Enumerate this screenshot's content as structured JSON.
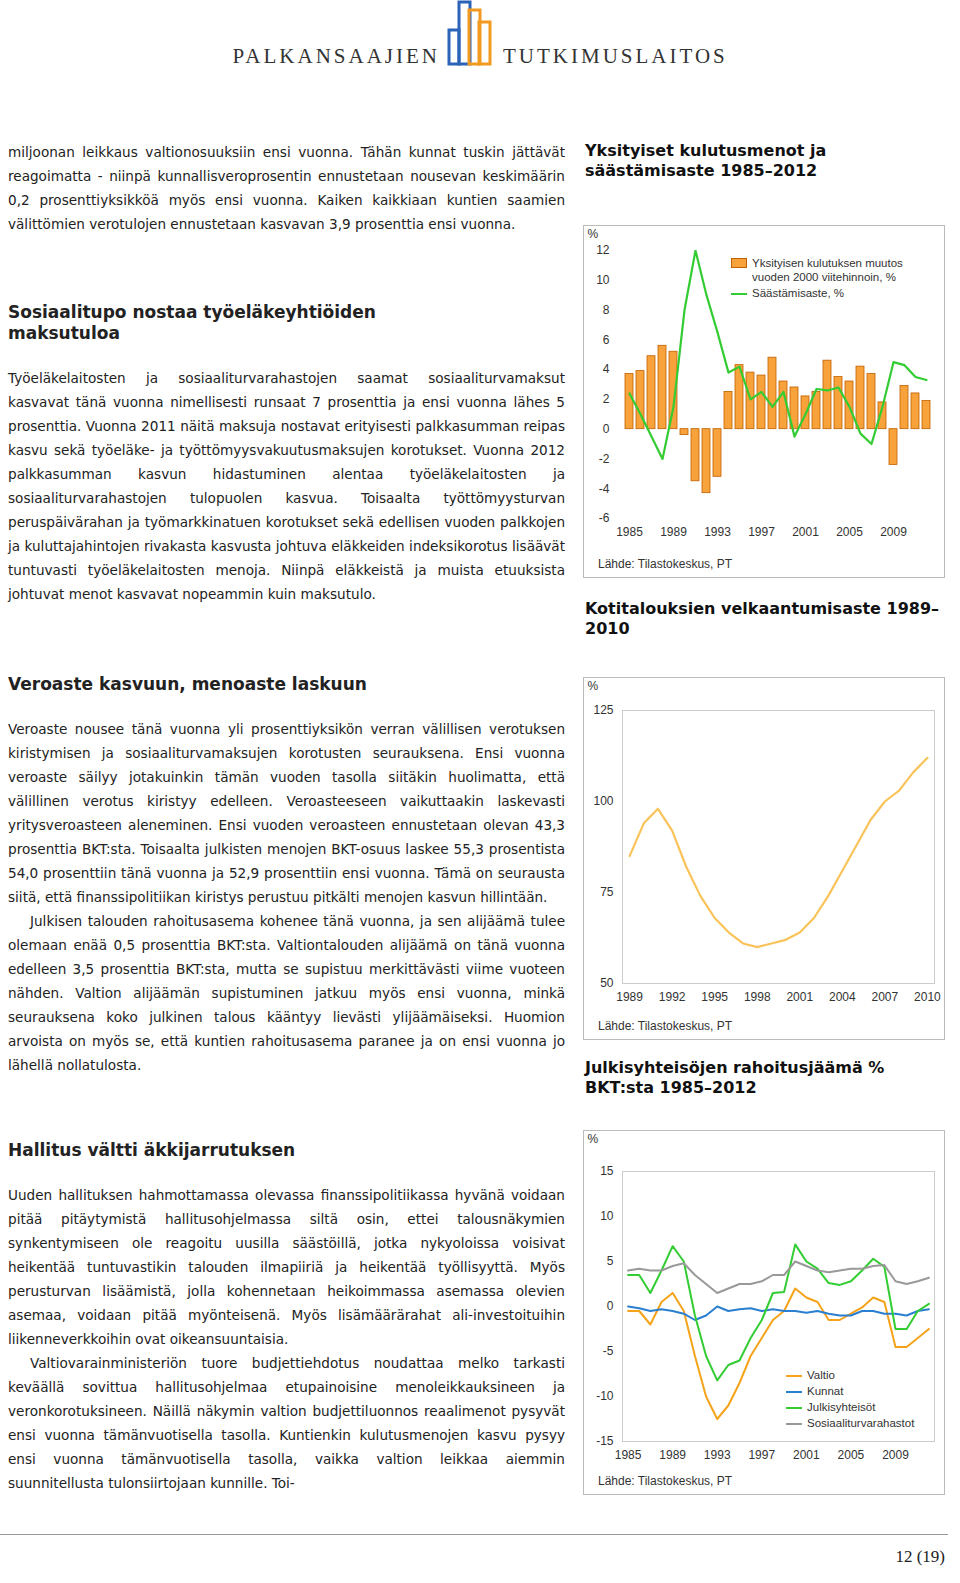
{
  "header": {
    "left": "PALKANSAAJIEN",
    "right": "TUTKIMUSLAITOS"
  },
  "sections": [
    {
      "paragraphs": [
        "miljoonan leikkaus valtionosuuksiin ensi vuonna. Tähän kunnat tuskin jättävät reagoimatta - niinpä kunnallisveroprosentin ennustetaan nousevan keskimäärin 0,2 prosenttiyksikköä myös ensi vuonna. Kaiken kaikkiaan kuntien saamien välittömien verotulojen ennustetaan kasvavan 3,9 prosenttia ensi vuonna."
      ]
    },
    {
      "heading": "Sosiaalitupo nostaa työeläkeyhtiöiden maksutuloa",
      "paragraphs": [
        "Työeläkelaitosten ja sosiaaliturvarahastojen saamat sosiaaliturvamaksut kasvavat tänä vuonna nimellisesti runsaat 7 prosenttia ja ensi vuonna lähes 5 prosenttia. Vuonna 2011 näitä maksuja nostavat erityisesti palkkasumman reipas kasvu sekä työeläke- ja työttömyysvakuutusmaksujen korotukset. Vuonna 2012 palkkasumman kasvun hidastuminen alentaa työeläkelaitosten ja sosiaaliturvarahastojen tulopuolen kasvua. Toisaalta työttömyysturvan peruspäivärahan ja työmarkkinatuen korotukset sekä edellisen vuoden palkkojen ja kuluttajahintojen rivakasta kasvusta johtuva eläkkeiden indeksikorotus lisäävät tuntuvasti työeläkelaitosten menoja. Niinpä eläkkeistä ja muista etuuksista johtuvat menot kasvavat nopeammin kuin maksutulo."
      ]
    },
    {
      "heading": "Veroaste kasvuun, menoaste laskuun",
      "paragraphs": [
        "Veroaste nousee tänä vuonna yli prosenttiyksikön verran välillisen verotuksen kiristymisen ja sosiaaliturvamaksujen korotusten seurauksena. Ensi vuonna veroaste säilyy jotakuinkin tämän vuoden tasolla siitäkin huolimatta, että välillinen verotus kiristyy edelleen. Veroasteeseen vaikuttaakin laskevasti yritysveroasteen aleneminen. Ensi vuoden veroasteen ennustetaan olevan 43,3 prosenttia BKT:sta. Toisaalta julkisten menojen BKT-osuus laskee 55,3 prosentista 54,0 prosenttiin tänä vuonna ja 52,9 prosenttiin ensi vuonna. Tämä on seurausta siitä, että finanssipolitiikan kiristys perustuu pitkälti menojen kasvun hillintään.",
        "Julkisen talouden rahoitusasema kohenee tänä vuonna, ja sen alijäämä tulee olemaan enää 0,5 prosenttia BKT:sta. Valtiontalouden alijäämä on tänä vuonna edelleen 3,5 prosenttia BKT:sta, mutta se supistuu merkittävästi viime vuoteen nähden. Valtion alijäämän supistuminen jatkuu myös ensi vuonna, minkä seurauksena koko julkinen talous kääntyy lievästi ylijäämäiseksi. Huomion arvoista on myös se, että kuntien rahoitusasema paranee ja on ensi vuonna jo lähellä nollatulosta."
      ]
    },
    {
      "heading": "Hallitus vältti äkkijarrutuksen",
      "paragraphs": [
        "Uuden hallituksen hahmottamassa olevassa finanssipolitiikassa hyvänä voidaan pitää pitäytymistä hallitusohjelmassa siltä osin, ettei talousnäkymien synkentymiseen ole reagoitu uusilla säästöillä, jotka nykyoloissa voisivat heikentää tuntuvastikin talouden ilmapiiriä ja heikentää työllisyyttä. Myös perusturvan lisäämistä, jolla kohennetaan heikoimmassa asemassa olevien asemaa, voidaan pitää myönteisenä. Myös lisämäärärahat ali-investoituihin liikenneverkkoihin ovat oikeansuuntaisia.",
        "Valtiovarainministeriön tuore budjettiehdotus noudattaa melko tarkasti keväällä sovittua hallitusohjelmaa etupainoisine menoleikkauksineen ja veronkorotuksineen. Näillä näkymin valtion budjettiluonnos reaalimenot pysyvät ensi vuonna tämänvuotisella tasolla. Kuntienkin kulutusmenojen kasvu pysyy ensi vuonna tämänvuotisella tasolla, vaikka valtion leikkaa aiemmin suunnitellusta tulonsiirtojaan kunnille. Toi-"
      ]
    }
  ],
  "chart_data": [
    {
      "type": "bar",
      "title": "Yksityiset kulutusmenot ja säästämisaste 1985–2012",
      "y_label": "%",
      "categories": [
        "1985",
        null,
        null,
        null,
        "1989",
        null,
        null,
        null,
        "1993",
        null,
        null,
        null,
        "1997",
        null,
        null,
        null,
        "2001",
        null,
        null,
        null,
        "2005",
        null,
        null,
        null,
        "2009",
        null,
        null,
        null
      ],
      "series": [
        {
          "name": "Yksityisen kulutuksen muutos vuoden 2000 viitehinnoin, %",
          "type": "bar",
          "color": "#f7a23b",
          "values": [
            3.7,
            3.9,
            4.9,
            5.6,
            5.2,
            -0.4,
            -3.5,
            -4.3,
            -3.2,
            2.5,
            4.3,
            3.8,
            3.6,
            4.8,
            3.2,
            2.8,
            2.2,
            2.5,
            4.6,
            3.5,
            3.2,
            4.2,
            3.7,
            1.8,
            -2.4,
            2.9,
            2.4,
            1.9
          ]
        },
        {
          "name": "Säästämisaste, %",
          "type": "line",
          "color": "#33cc33",
          "values": [
            2.4,
            1.0,
            -0.5,
            -2.0,
            1.5,
            8.0,
            12.0,
            9.0,
            6.5,
            3.8,
            4.2,
            2.0,
            2.5,
            1.5,
            2.5,
            -0.5,
            1.0,
            2.7,
            2.6,
            2.8,
            1.5,
            -0.3,
            -1.0,
            1.5,
            4.5,
            4.3,
            3.5,
            3.3
          ]
        }
      ],
      "ylim": [
        -6,
        12
      ],
      "yticks": [
        -6,
        -4,
        -2,
        0,
        2,
        4,
        6,
        8,
        10,
        12
      ],
      "legend": "top-right",
      "source": "Lähde: Tilastokeskus, PT"
    },
    {
      "type": "line",
      "title": "Kotitalouksien velkaantumisaste 1989–2010",
      "y_label": "%",
      "x": [
        1989,
        1990,
        1991,
        1992,
        1993,
        1994,
        1995,
        1996,
        1997,
        1998,
        1999,
        2000,
        2001,
        2002,
        2003,
        2004,
        2005,
        2006,
        2007,
        2008,
        2009,
        2010
      ],
      "values": [
        85,
        94,
        98,
        92,
        82,
        74,
        68,
        64,
        61,
        60,
        61,
        62,
        64,
        68,
        74,
        81,
        88,
        95,
        100,
        103,
        108,
        112
      ],
      "color": "#f9c35a",
      "xlim": [
        1988.5,
        2010.5
      ],
      "xticks": [
        1989,
        1992,
        1995,
        1998,
        2001,
        2004,
        2007,
        2010
      ],
      "ylim": [
        50,
        125
      ],
      "yticks": [
        50,
        75,
        100,
        125
      ],
      "source": "Lähde: Tilastokeskus, PT"
    },
    {
      "type": "line",
      "title": "Julkisyhteisöjen rahoitusjäämä % BKT:sta 1985–2012",
      "y_label": "%",
      "x": [
        1985,
        1986,
        1987,
        1988,
        1989,
        1990,
        1991,
        1992,
        1993,
        1994,
        1995,
        1996,
        1997,
        1998,
        1999,
        2000,
        2001,
        2002,
        2003,
        2004,
        2005,
        2006,
        2007,
        2008,
        2009,
        2010,
        2011,
        2012
      ],
      "series": [
        {
          "name": "Valtio",
          "color": "#f5a31a",
          "values": [
            -0.5,
            -0.5,
            -2.0,
            0.5,
            1.5,
            -0.5,
            -5.5,
            -10.0,
            -12.5,
            -11.0,
            -8.5,
            -5.5,
            -3.5,
            -1.5,
            -0.5,
            2.0,
            1.0,
            0.5,
            -1.5,
            -1.5,
            -0.8,
            -0.1,
            1.0,
            0.5,
            -4.5,
            -4.5,
            -3.5,
            -2.5
          ]
        },
        {
          "name": "Kunnat",
          "color": "#2a7fd0",
          "values": [
            0.0,
            -0.2,
            -0.5,
            -0.3,
            -0.5,
            -0.8,
            -1.5,
            -1.0,
            0.0,
            -0.5,
            -0.3,
            -0.2,
            -0.5,
            -0.3,
            -0.5,
            -0.5,
            -0.7,
            -0.5,
            -0.8,
            -1.0,
            -1.0,
            -0.5,
            -0.5,
            -0.8,
            -0.8,
            -1.0,
            -0.5,
            -0.3
          ]
        },
        {
          "name": "Julkisyhteisöt",
          "color": "#33cc33",
          "values": [
            3.5,
            3.5,
            1.5,
            4.0,
            6.7,
            5.0,
            -1.0,
            -5.5,
            -8.2,
            -6.5,
            -6.0,
            -3.5,
            -1.5,
            1.5,
            1.6,
            6.9,
            5.0,
            4.2,
            2.6,
            2.4,
            2.8,
            4.0,
            5.3,
            4.4,
            -2.5,
            -2.5,
            -0.5,
            0.3
          ]
        },
        {
          "name": "Sosiaaliturvarahastot",
          "color": "#999999",
          "values": [
            4.0,
            4.2,
            4.0,
            4.0,
            4.5,
            4.8,
            3.5,
            2.5,
            1.5,
            2.0,
            2.5,
            2.5,
            2.8,
            3.5,
            3.5,
            5.0,
            4.5,
            4.0,
            3.8,
            4.0,
            4.2,
            4.2,
            4.5,
            4.6,
            2.8,
            2.5,
            2.8,
            3.2
          ]
        }
      ],
      "xlim": [
        1984.5,
        2012.5
      ],
      "xticks": [
        1985,
        1989,
        1993,
        1997,
        2001,
        2005,
        2009
      ],
      "ylim": [
        -15,
        15
      ],
      "yticks": [
        -15,
        -10,
        -5,
        0,
        5,
        10,
        15
      ],
      "legend": "bottom-right",
      "source": "Lähde: Tilastokeskus, PT"
    }
  ],
  "page_number": "12 (19)"
}
